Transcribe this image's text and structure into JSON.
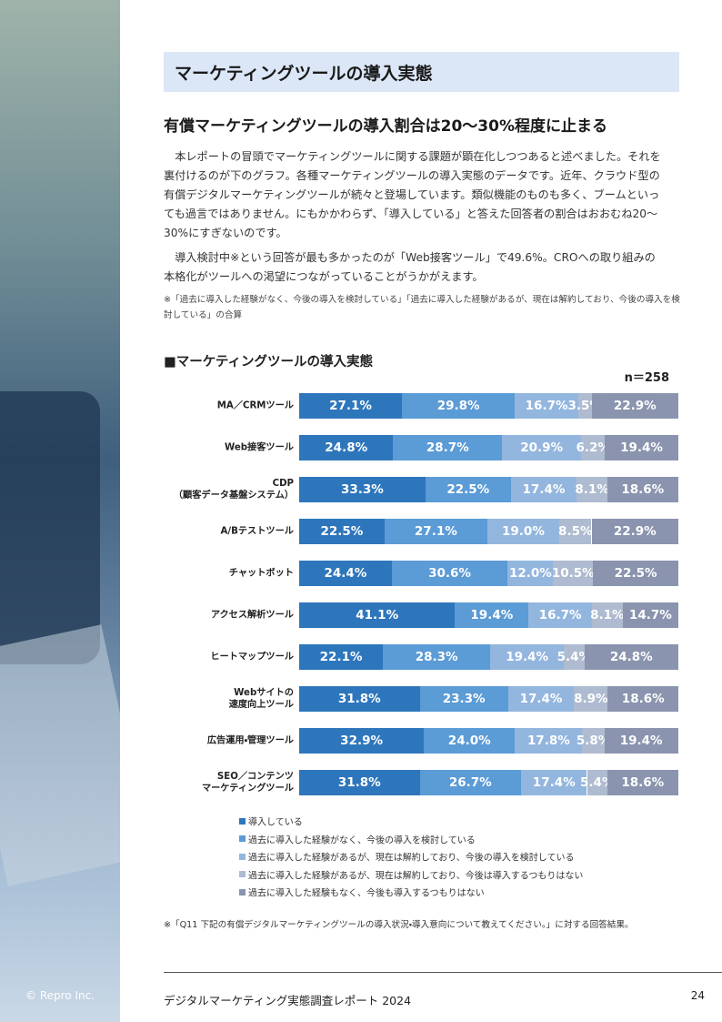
{
  "header": {
    "title": "マーケティングツールの導入実態"
  },
  "subheading": "有償マーケティングツールの導入割合は20〜30%程度に止まる",
  "paragraphs": [
    "本レポートの冒頭でマーケティングツールに関する課題が顕在化しつつあると述べました。それを裏付けるのが下のグラフ。各種マーケティングツールの導入実態のデータです。近年、クラウド型の有償デジタルマーケティングツールが続々と登場しています。類似機能のものも多く、ブームといっても過言ではありません。にもかかわらず、「導入している」と答えた回答者の割合はおおむね20〜30%にすぎないのです。",
    "導入検討中※という回答が最も多かったのが「Web接客ツール」で49.6%。CROへの取り組みの本格化がツールへの渇望につながっていることがうかがえます。"
  ],
  "note": "※「過去に導入した経験がなく、今後の導入を検討している」「過去に導入した経験があるが、現在は解約しており、今後の導入を検討している」の合算",
  "chart_data": {
    "type": "stacked-bar-horizontal",
    "title": "■マーケティングツールの導入実態",
    "sample_size": "n＝258",
    "xlim": [
      0,
      100
    ],
    "categories": [
      "MA／CRMツール",
      "Web接客ツール",
      "CDP\n（顧客データ基盤システム）",
      "A/Bテストツール",
      "チャットボット",
      "アクセス解析ツール",
      "ヒートマップツール",
      "Webサイトの\n速度向上ツール",
      "広告運用・管理ツール",
      "SEO／コンテンツ\nマーケティングツール"
    ],
    "series": [
      {
        "name": "導入している",
        "color": "#2e76bc",
        "values": [
          27.1,
          24.8,
          33.3,
          22.5,
          24.4,
          41.1,
          22.1,
          31.8,
          32.9,
          31.8
        ],
        "value_labels": [
          "27.1%",
          "24.8%",
          "33.3%",
          "22.5%",
          "24.4%",
          "41.1%",
          "22.1%",
          "31.8%",
          "32.9%",
          "31.8%"
        ]
      },
      {
        "name": "過去に導入した経験がなく、今後の導入を検討している",
        "color": "#5b9bd6",
        "values": [
          29.8,
          28.7,
          22.5,
          27.1,
          30.6,
          19.4,
          28.3,
          23.3,
          24.0,
          26.7
        ],
        "value_labels": [
          "29.8%",
          "28.7%",
          "22.5%",
          "27.1%",
          "30.6%",
          "19.4%",
          "28.3%",
          "23.3%",
          "24.0%",
          "26.7%"
        ]
      },
      {
        "name": "過去に導入した経験があるが、現在は解約しており、今後の導入を検討している",
        "color": "#93b6df",
        "values": [
          16.7,
          20.9,
          17.4,
          19.0,
          12.0,
          16.7,
          19.4,
          17.4,
          17.8,
          17.4
        ],
        "value_labels": [
          "16.7%",
          "20.9%",
          "17.4%",
          "19.0%",
          "12.0%",
          "16.7%",
          "19.4%",
          "17.4%",
          "17.8%",
          "17.4%"
        ]
      },
      {
        "name": "過去に導入した経験があるが、現在は解約しており、今後は導入するつもりはない",
        "color": "#aebbd0",
        "values": [
          3.5,
          6.2,
          8.1,
          8.5,
          10.5,
          8.1,
          5.4,
          8.9,
          5.8,
          5.4
        ],
        "value_labels": [
          "3.5%",
          "6.2%",
          "8.1%",
          "8.5%",
          "10.5%",
          "8.1%",
          "5.4%",
          "8.9%",
          "5.8%",
          "5.4%"
        ]
      },
      {
        "name": "過去に導入した経験もなく、今後も導入するつもりはない",
        "color": "#8a94ae",
        "values": [
          22.9,
          19.4,
          18.6,
          22.9,
          22.5,
          14.7,
          24.8,
          18.6,
          19.4,
          18.6
        ],
        "value_labels": [
          "22.9%",
          "19.4%",
          "18.6%",
          "22.9%",
          "22.5%",
          "14.7%",
          "24.8%",
          "18.6%",
          "19.4%",
          "18.6%"
        ]
      }
    ]
  },
  "footnote": "※「Q11 下記の有償デジタルマーケティングツールの導入状況・導入意向について教えてください。」に対する回答結果。",
  "footer": {
    "copyright": "© Repro Inc.",
    "report_name": "デジタルマーケティング実態調査レポート 2024",
    "page_number": 24
  }
}
